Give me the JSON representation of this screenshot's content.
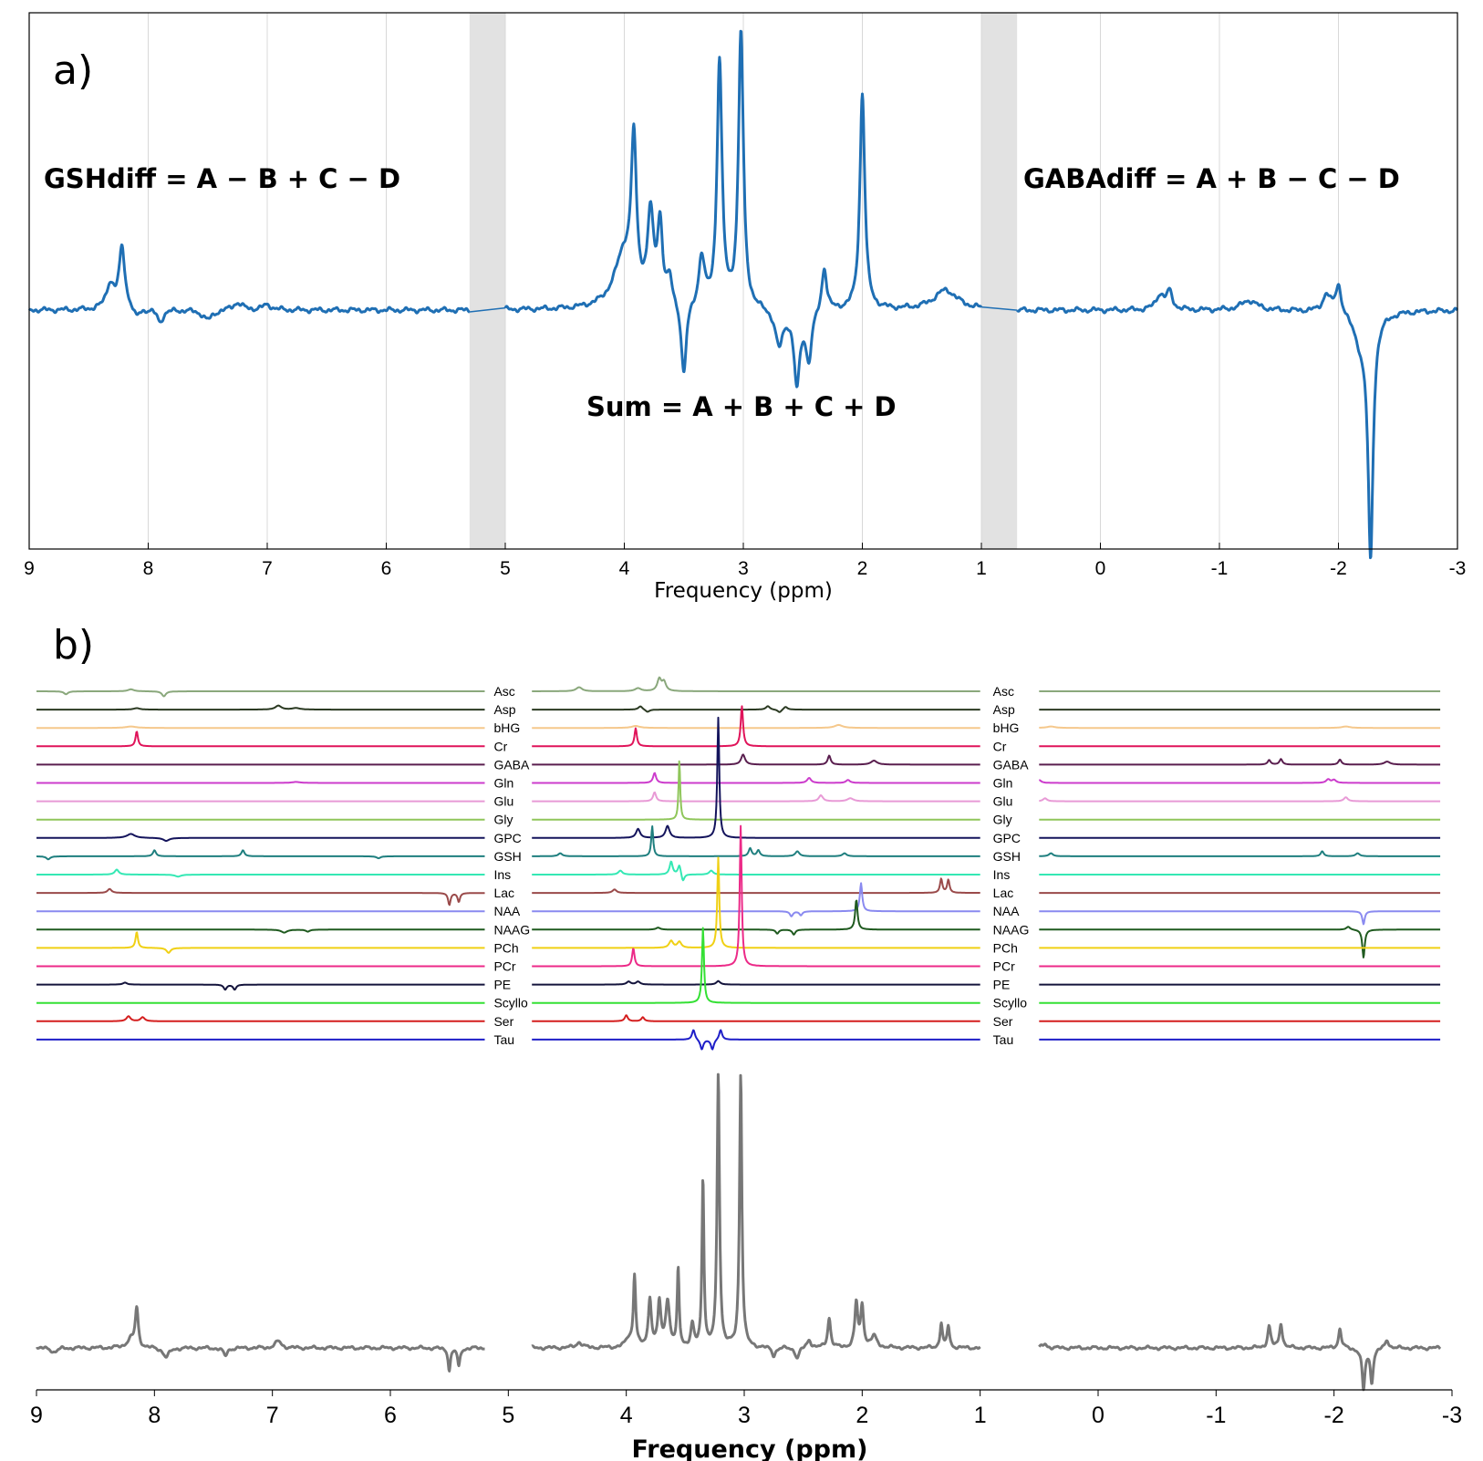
{
  "chart_data": [
    {
      "panel_label": "a)",
      "type": "line",
      "xlabel": "Frequency (ppm)",
      "ylabel": "",
      "title": "",
      "xlim": [
        9,
        -3
      ],
      "x_ticks": [
        "9",
        "8",
        "7",
        "6",
        "5",
        "4",
        "3",
        "2",
        "1",
        "0",
        "-1",
        "-2",
        "-3"
      ],
      "grid": "vertical",
      "line_color": "#1f6fb4",
      "shaded_bands": [
        [
          5.3,
          5.0
        ],
        [
          1.0,
          0.7
        ]
      ],
      "annotations": [
        "GSHdiff = A − B + C − D",
        "Sum = A + B + C + D",
        "GABAdiff = A + B − C − D"
      ],
      "segments": [
        {
          "name": "GSHdiff",
          "xrange": [
            9.0,
            5.3
          ],
          "baseline": 0.0,
          "peaks": [
            [
              8.32,
              0.1,
              0.04
            ],
            [
              8.22,
              0.25,
              0.03
            ],
            [
              8.1,
              -0.04,
              0.03
            ],
            [
              7.9,
              -0.05,
              0.03
            ],
            [
              7.5,
              -0.04,
              0.05
            ],
            [
              7.25,
              0.03,
              0.05
            ],
            [
              7.0,
              0.02,
              0.05
            ]
          ]
        },
        {
          "name": "Sum",
          "xrange": [
            5.0,
            1.0
          ],
          "baseline": 0.0,
          "peaks": [
            [
              4.0,
              0.22,
              0.1
            ],
            [
              3.92,
              0.6,
              0.025
            ],
            [
              3.78,
              0.35,
              0.03
            ],
            [
              3.7,
              0.32,
              0.025
            ],
            [
              3.62,
              0.1,
              0.03
            ],
            [
              3.5,
              -0.3,
              0.025
            ],
            [
              3.35,
              0.2,
              0.03
            ],
            [
              3.2,
              1.0,
              0.025
            ],
            [
              3.02,
              1.12,
              0.025
            ],
            [
              2.7,
              -0.15,
              0.04
            ],
            [
              2.55,
              -0.3,
              0.03
            ],
            [
              2.45,
              -0.2,
              0.03
            ],
            [
              2.32,
              0.18,
              0.025
            ],
            [
              2.0,
              0.88,
              0.025
            ],
            [
              1.3,
              0.08,
              0.12
            ]
          ]
        },
        {
          "name": "GABAdiff",
          "xrange": [
            0.7,
            -3.0
          ],
          "baseline": 0.0,
          "peaks": [
            [
              -0.5,
              0.06,
              0.04
            ],
            [
              -0.58,
              0.07,
              0.03
            ],
            [
              -1.25,
              0.04,
              0.08
            ],
            [
              -1.9,
              0.07,
              0.04
            ],
            [
              -2.0,
              0.12,
              0.03
            ],
            [
              -2.27,
              -0.95,
              0.025
            ],
            [
              -2.2,
              -0.12,
              0.08
            ]
          ]
        }
      ]
    },
    {
      "panel_label": "b)",
      "type": "line",
      "xlabel": "Frequency (ppm)",
      "ylabel": "",
      "title": "",
      "xlim": [
        9,
        -3
      ],
      "x_ticks": [
        "9",
        "8",
        "7",
        "6",
        "5",
        "4",
        "3",
        "2",
        "1",
        "0",
        "-1",
        "-2",
        "-3"
      ],
      "grid": "off",
      "segment_ranges": [
        [
          9.0,
          5.2
        ],
        [
          4.8,
          1.0
        ],
        [
          0.5,
          -2.9
        ]
      ],
      "series": [
        {
          "name": "Asc",
          "color": "#8aa87c",
          "peaks": [
            [
              8.75,
              -0.3,
              0.02
            ],
            [
              8.2,
              0.2,
              0.03
            ],
            [
              7.92,
              -0.5,
              0.02
            ],
            [
              4.4,
              0.4,
              0.03
            ],
            [
              3.9,
              0.3,
              0.03
            ],
            [
              3.72,
              1.2,
              0.02
            ],
            [
              3.68,
              0.9,
              0.02
            ]
          ]
        },
        {
          "name": "Asp",
          "color": "#2b3a22",
          "peaks": [
            [
              8.15,
              0.15,
              0.03
            ],
            [
              6.95,
              0.4,
              0.03
            ],
            [
              6.8,
              0.15,
              0.04
            ],
            [
              3.88,
              0.35,
              0.02
            ],
            [
              3.82,
              -0.25,
              0.02
            ],
            [
              2.8,
              0.35,
              0.02
            ],
            [
              2.7,
              -0.3,
              0.02
            ],
            [
              2.65,
              0.3,
              0.02
            ]
          ]
        },
        {
          "name": "bHG",
          "color": "#f5c88c",
          "peaks": [
            [
              8.2,
              0.15,
              0.05
            ],
            [
              3.92,
              0.2,
              0.04
            ],
            [
              2.2,
              0.3,
              0.04
            ],
            [
              0.4,
              0.15,
              0.04
            ],
            [
              -2.1,
              0.15,
              0.04
            ]
          ]
        },
        {
          "name": "Cr",
          "color": "#e0145a",
          "peaks": [
            [
              8.15,
              1.5,
              0.012
            ],
            [
              3.92,
              1.8,
              0.012
            ],
            [
              3.02,
              4.0,
              0.012
            ]
          ]
        },
        {
          "name": "GABA",
          "color": "#5a1f4f",
          "peaks": [
            [
              3.01,
              1.0,
              0.02
            ],
            [
              2.28,
              0.9,
              0.015
            ],
            [
              1.9,
              0.4,
              0.03
            ],
            [
              -1.45,
              0.45,
              0.015
            ],
            [
              -1.55,
              0.55,
              0.015
            ],
            [
              -2.05,
              0.5,
              0.015
            ],
            [
              -2.45,
              0.3,
              0.03
            ]
          ]
        },
        {
          "name": "Gln",
          "color": "#cc3ccc",
          "peaks": [
            [
              6.8,
              0.1,
              0.04
            ],
            [
              3.76,
              1.0,
              0.015
            ],
            [
              2.45,
              0.5,
              0.02
            ],
            [
              2.12,
              0.3,
              0.02
            ],
            [
              0.5,
              0.3,
              0.02
            ],
            [
              -1.95,
              0.35,
              0.02
            ],
            [
              -2.0,
              0.3,
              0.02
            ]
          ]
        },
        {
          "name": "Glu",
          "color": "#e89ad6",
          "peaks": [
            [
              3.76,
              0.9,
              0.015
            ],
            [
              2.35,
              0.6,
              0.02
            ],
            [
              2.1,
              0.3,
              0.03
            ],
            [
              0.45,
              0.3,
              0.02
            ],
            [
              -2.1,
              0.4,
              0.02
            ]
          ]
        },
        {
          "name": "Gly",
          "color": "#8fc65a",
          "peaks": [
            [
              3.55,
              6.0,
              0.008
            ]
          ]
        },
        {
          "name": "GPC",
          "color": "#14145c",
          "peaks": [
            [
              8.2,
              0.4,
              0.04
            ],
            [
              7.9,
              -0.3,
              0.03
            ],
            [
              3.9,
              0.9,
              0.02
            ],
            [
              3.65,
              1.2,
              0.02
            ],
            [
              3.22,
              12.0,
              0.01
            ]
          ]
        },
        {
          "name": "GSH",
          "color": "#1f7f7f",
          "peaks": [
            [
              8.9,
              -0.3,
              0.02
            ],
            [
              8.0,
              0.6,
              0.015
            ],
            [
              7.25,
              0.6,
              0.015
            ],
            [
              6.1,
              -0.2,
              0.02
            ],
            [
              4.56,
              0.3,
              0.02
            ],
            [
              3.78,
              3.0,
              0.01
            ],
            [
              2.95,
              0.8,
              0.015
            ],
            [
              2.88,
              0.6,
              0.015
            ],
            [
              2.55,
              0.5,
              0.02
            ],
            [
              2.15,
              0.3,
              0.02
            ],
            [
              0.4,
              0.3,
              0.02
            ],
            [
              -1.9,
              0.5,
              0.015
            ],
            [
              -2.2,
              0.3,
              0.02
            ]
          ]
        },
        {
          "name": "Ins",
          "color": "#34e8b4",
          "peaks": [
            [
              8.32,
              0.5,
              0.02
            ],
            [
              7.8,
              -0.2,
              0.03
            ],
            [
              4.05,
              0.4,
              0.02
            ],
            [
              3.62,
              1.3,
              0.015
            ],
            [
              3.55,
              1.0,
              0.015
            ],
            [
              3.52,
              -0.8,
              0.015
            ],
            [
              3.28,
              0.4,
              0.02
            ]
          ]
        },
        {
          "name": "Lac",
          "color": "#9a4a4a",
          "peaks": [
            [
              8.38,
              0.4,
              0.02
            ],
            [
              5.5,
              -1.2,
              0.012
            ],
            [
              5.42,
              -0.9,
              0.012
            ],
            [
              4.1,
              0.35,
              0.02
            ],
            [
              1.33,
              1.4,
              0.012
            ],
            [
              1.27,
              1.3,
              0.012
            ]
          ]
        },
        {
          "name": "NAA",
          "color": "#8a8af0",
          "peaks": [
            [
              2.6,
              -0.5,
              0.015
            ],
            [
              2.52,
              -0.4,
              0.015
            ],
            [
              2.01,
              2.8,
              0.012
            ],
            [
              -2.25,
              -1.3,
              0.012
            ]
          ]
        },
        {
          "name": "NAAG",
          "color": "#1f5a1f",
          "peaks": [
            [
              6.9,
              -0.3,
              0.03
            ],
            [
              6.7,
              -0.2,
              0.02
            ],
            [
              3.73,
              0.2,
              0.02
            ],
            [
              2.72,
              -0.4,
              0.015
            ],
            [
              2.58,
              -0.5,
              0.015
            ],
            [
              2.05,
              3.0,
              0.012
            ],
            [
              -2.25,
              -2.8,
              0.012
            ],
            [
              -2.12,
              0.3,
              0.02
            ]
          ]
        },
        {
          "name": "PCh",
          "color": "#f0d014",
          "peaks": [
            [
              8.15,
              1.6,
              0.012
            ],
            [
              7.88,
              -0.5,
              0.02
            ],
            [
              3.62,
              0.7,
              0.02
            ],
            [
              3.55,
              0.6,
              0.02
            ],
            [
              3.22,
              9.0,
              0.01
            ]
          ]
        },
        {
          "name": "PCr",
          "color": "#ec2a88",
          "peaks": [
            [
              3.94,
              1.8,
              0.012
            ],
            [
              3.03,
              14.0,
              0.01
            ]
          ]
        },
        {
          "name": "PE",
          "color": "#14143c",
          "peaks": [
            [
              8.25,
              0.2,
              0.02
            ],
            [
              7.4,
              -0.5,
              0.015
            ],
            [
              7.32,
              -0.5,
              0.015
            ],
            [
              3.98,
              0.3,
              0.02
            ],
            [
              3.9,
              0.3,
              0.02
            ],
            [
              3.22,
              0.35,
              0.02
            ]
          ]
        },
        {
          "name": "Scyllo",
          "color": "#34e034",
          "peaks": [
            [
              3.35,
              7.5,
              0.01
            ]
          ]
        },
        {
          "name": "Ser",
          "color": "#d41e1e",
          "peaks": [
            [
              8.22,
              0.5,
              0.02
            ],
            [
              8.1,
              0.4,
              0.02
            ],
            [
              4.0,
              0.6,
              0.015
            ],
            [
              3.86,
              0.4,
              0.015
            ]
          ]
        },
        {
          "name": "Tau",
          "color": "#1e1ec8",
          "peaks": [
            [
              3.43,
              1.0,
              0.015
            ],
            [
              3.36,
              -1.0,
              0.015
            ],
            [
              3.27,
              -1.0,
              0.015
            ],
            [
              3.2,
              1.0,
              0.015
            ]
          ]
        }
      ],
      "sum_series": {
        "name": "",
        "color": "#777777",
        "peaks": [
          [
            8.85,
            -0.15,
            0.03
          ],
          [
            8.2,
            0.3,
            0.04
          ],
          [
            8.15,
            1.4,
            0.015
          ],
          [
            7.9,
            -0.35,
            0.03
          ],
          [
            7.4,
            -0.3,
            0.02
          ],
          [
            6.95,
            0.25,
            0.03
          ],
          [
            5.5,
            -0.8,
            0.012
          ],
          [
            5.42,
            -0.7,
            0.012
          ],
          [
            4.4,
            0.2,
            0.03
          ],
          [
            3.98,
            0.3,
            0.03
          ],
          [
            3.93,
            2.6,
            0.012
          ],
          [
            3.8,
            1.8,
            0.015
          ],
          [
            3.72,
            1.6,
            0.015
          ],
          [
            3.65,
            1.7,
            0.02
          ],
          [
            3.56,
            2.8,
            0.01
          ],
          [
            3.44,
            0.8,
            0.015
          ],
          [
            3.35,
            6.2,
            0.01
          ],
          [
            3.22,
            10.0,
            0.012
          ],
          [
            3.03,
            10.0,
            0.012
          ],
          [
            2.75,
            -0.3,
            0.02
          ],
          [
            2.55,
            -0.4,
            0.02
          ],
          [
            2.45,
            0.3,
            0.02
          ],
          [
            2.28,
            1.1,
            0.015
          ],
          [
            2.05,
            1.6,
            0.015
          ],
          [
            2.0,
            1.5,
            0.015
          ],
          [
            1.9,
            0.4,
            0.03
          ],
          [
            1.33,
            0.9,
            0.012
          ],
          [
            1.27,
            0.8,
            0.012
          ],
          [
            0.45,
            0.15,
            0.02
          ],
          [
            -1.45,
            0.8,
            0.015
          ],
          [
            -1.55,
            0.9,
            0.015
          ],
          [
            -2.05,
            0.7,
            0.015
          ],
          [
            -2.25,
            -1.5,
            0.015
          ],
          [
            -2.32,
            -1.2,
            0.015
          ],
          [
            -2.45,
            0.3,
            0.02
          ]
        ]
      }
    }
  ]
}
